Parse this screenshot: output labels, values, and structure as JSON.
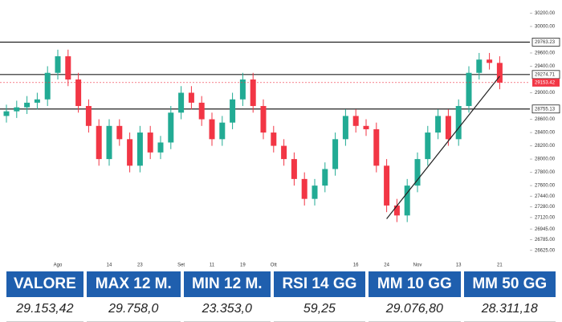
{
  "chart_data": {
    "type": "candlestick",
    "categories": [
      null,
      null,
      null,
      null,
      null,
      "Ago",
      null,
      null,
      null,
      null,
      "14",
      null,
      null,
      "23",
      null,
      null,
      null,
      "Set",
      null,
      null,
      "11",
      null,
      null,
      "19",
      null,
      null,
      "Ott",
      null,
      null,
      null,
      null,
      null,
      null,
      null,
      "16",
      null,
      null,
      "24",
      null,
      null,
      "Nov",
      null,
      null,
      null,
      "13",
      null,
      null,
      null,
      "21"
    ],
    "open": [
      28650,
      28720,
      28780,
      28850,
      28900,
      29300,
      29550,
      29200,
      28800,
      28500,
      28000,
      28500,
      28300,
      27900,
      28400,
      28100,
      28250,
      28700,
      29000,
      28850,
      28600,
      28300,
      28550,
      28900,
      29200,
      28800,
      28400,
      28200,
      28000,
      27700,
      27400,
      27600,
      27850,
      28300,
      28650,
      28500,
      28450,
      27900,
      27300,
      27150,
      27600,
      28000,
      28400,
      28650,
      28300,
      28800,
      29300,
      29500,
      29450
    ],
    "high": [
      28820,
      28880,
      28950,
      29000,
      29400,
      29650,
      29650,
      29300,
      28900,
      28600,
      28600,
      28600,
      28400,
      28500,
      28500,
      28350,
      28800,
      29100,
      29100,
      28950,
      28700,
      28650,
      29000,
      29300,
      29300,
      28900,
      28500,
      28300,
      28100,
      27800,
      27700,
      27950,
      28400,
      28750,
      28750,
      28600,
      28550,
      28000,
      27400,
      27700,
      28100,
      28500,
      28750,
      28750,
      28900,
      29400,
      29600,
      29600,
      29550
    ],
    "low": [
      28550,
      28620,
      28680,
      28750,
      28800,
      29200,
      29100,
      28700,
      28400,
      27900,
      27900,
      28200,
      27800,
      27800,
      28000,
      28000,
      28150,
      28600,
      28750,
      28500,
      28200,
      28200,
      28450,
      28800,
      28700,
      28300,
      28100,
      27900,
      27600,
      27300,
      27300,
      27500,
      27750,
      28200,
      28400,
      28350,
      27800,
      27200,
      27050,
      27050,
      27500,
      27900,
      28300,
      28200,
      28200,
      28700,
      29200,
      29350,
      29053
    ],
    "close": [
      28720,
      28780,
      28850,
      28900,
      29300,
      29550,
      29200,
      28800,
      28500,
      28000,
      28500,
      28300,
      27900,
      28400,
      28100,
      28250,
      28700,
      29000,
      28850,
      28600,
      28300,
      28550,
      28900,
      29200,
      28800,
      28400,
      28200,
      28000,
      27700,
      27400,
      27600,
      27850,
      28300,
      28650,
      28500,
      28450,
      27900,
      27300,
      27150,
      27600,
      28000,
      28400,
      28650,
      28300,
      28800,
      29300,
      29500,
      29450,
      29153
    ],
    "up_color": "#22ab94",
    "down_color": "#f23645",
    "ylim": [
      26500,
      30350
    ],
    "yticks": [
      {
        "value": 30200,
        "label": "30200.00"
      },
      {
        "value": 30000,
        "label": "30000.00"
      },
      {
        "value": 29600,
        "label": "29600.00"
      },
      {
        "value": 29400,
        "label": "29400.00"
      },
      {
        "value": 29000,
        "label": "29000.00"
      },
      {
        "value": 28600,
        "label": "28600.00"
      },
      {
        "value": 28400,
        "label": "28400.00"
      },
      {
        "value": 28200,
        "label": "28200.00"
      },
      {
        "value": 28000,
        "label": "28000.00"
      },
      {
        "value": 27800,
        "label": "27800.00"
      },
      {
        "value": 27600,
        "label": "27600.00"
      },
      {
        "value": 27440,
        "label": "27440.00"
      },
      {
        "value": 27280,
        "label": "27280.00"
      },
      {
        "value": 27120,
        "label": "27120.00"
      },
      {
        "value": 26945,
        "label": "26945.00"
      },
      {
        "value": 26785,
        "label": "26785.00"
      },
      {
        "value": 26625,
        "label": "26625.00"
      }
    ],
    "hlines": [
      {
        "value": 29763.23,
        "label": "29763.23"
      },
      {
        "value": 29274.71,
        "label": "29274.71"
      },
      {
        "value": 28755.13,
        "label": "28755.13"
      }
    ],
    "current": {
      "value": 29153.42,
      "label": "29153.42"
    },
    "trendline": {
      "x": [
        37,
        48
      ],
      "values": [
        27100,
        29250
      ]
    }
  },
  "table": {
    "headers": [
      "VALORE",
      "MAX 12 M.",
      "MIN 12 M.",
      "RSI 14 GG",
      "MM 10 GG",
      "MM 50 GG"
    ],
    "rows": [
      [
        "29.153,42",
        "29.758,0",
        "23.353,0",
        "59,25",
        "29.076,80",
        "28.311,18"
      ]
    ]
  }
}
